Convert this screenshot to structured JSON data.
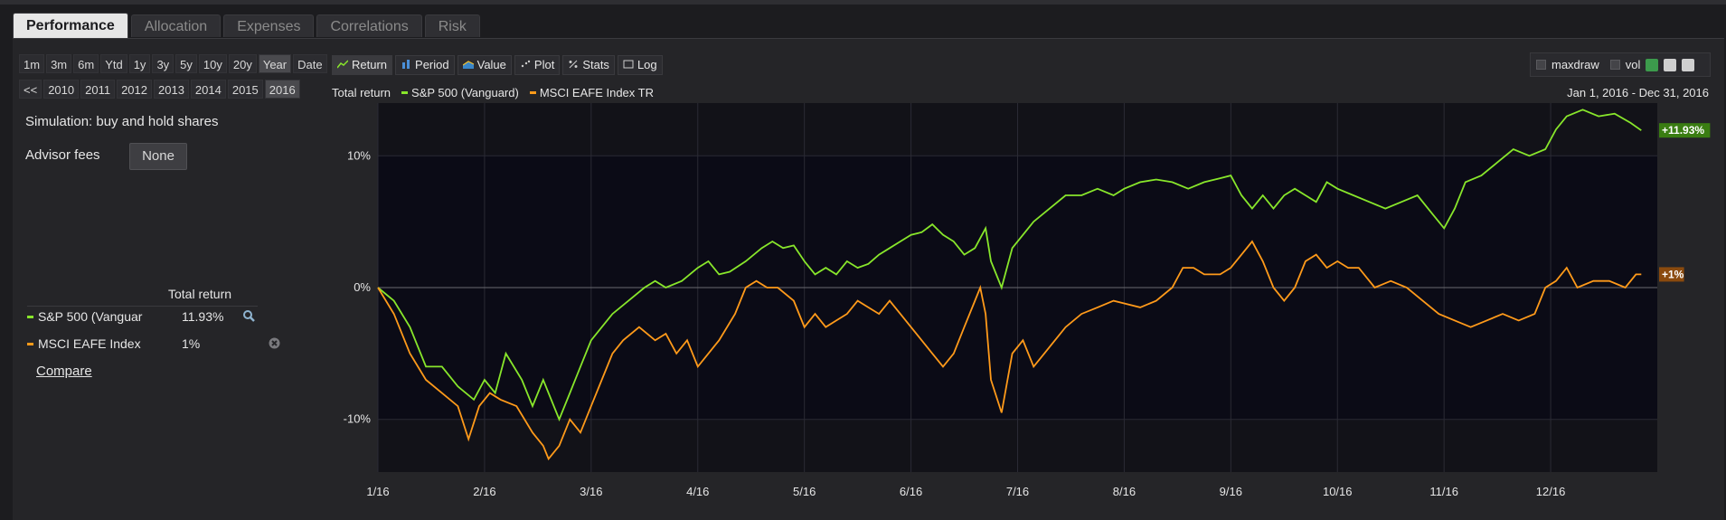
{
  "tabs": [
    {
      "label": "Performance",
      "active": true
    },
    {
      "label": "Allocation",
      "active": false
    },
    {
      "label": "Expenses",
      "active": false
    },
    {
      "label": "Correlations",
      "active": false
    },
    {
      "label": "Risk",
      "active": false
    }
  ],
  "periods": [
    "1m",
    "3m",
    "6m",
    "Ytd",
    "1y",
    "3y",
    "5y",
    "10y",
    "20y",
    "Year",
    "Date"
  ],
  "periods_selected": "Year",
  "years": [
    "<<",
    "2010",
    "2011",
    "2012",
    "2013",
    "2014",
    "2015",
    "2016"
  ],
  "year_selected": "2016",
  "simulation_label": "Simulation: buy and hold shares",
  "advisor_fees": {
    "label": "Advisor fees",
    "value": "None"
  },
  "holdings": {
    "header": "Total return",
    "rows": [
      {
        "name": "S&P 500 (Vanguar",
        "value": "11.93%",
        "color": "#88e62b",
        "icon": "magnifier-icon"
      },
      {
        "name": "MSCI EAFE Index",
        "value": "1%",
        "color": "#ff9a1a",
        "icon": "remove-icon"
      }
    ]
  },
  "compare_link": "Compare",
  "chart_controls": [
    {
      "label": "Return",
      "selected": true,
      "icon": "line-icon"
    },
    {
      "label": "Period",
      "selected": false,
      "icon": "bar-icon"
    },
    {
      "label": "Value",
      "selected": false,
      "icon": "area-icon"
    },
    {
      "label": "Plot",
      "selected": false,
      "icon": "scatter-icon"
    },
    {
      "label": "Stats",
      "selected": false,
      "icon": "percent-icon"
    },
    {
      "label": "Log",
      "selected": false,
      "icon": "checkbox-icon"
    }
  ],
  "toolbox": {
    "maxdraw": "maxdraw",
    "vol": "vol"
  },
  "chart_data": {
    "type": "line",
    "title": "Total return",
    "date_range": "Jan 1, 2016 - Dec 31, 2016",
    "x_ticks": [
      "1/16",
      "2/16",
      "3/16",
      "4/16",
      "5/16",
      "6/16",
      "7/16",
      "8/16",
      "9/16",
      "10/16",
      "11/16",
      "12/16"
    ],
    "y_ticks": [
      "10%",
      "0%",
      "-10%"
    ],
    "ylim": [
      -14,
      14
    ],
    "series": [
      {
        "name": "S&P 500 (Vanguard)",
        "color": "#88e62b",
        "end_label": "+11.93%",
        "points": [
          [
            0,
            0
          ],
          [
            0.15,
            -1
          ],
          [
            0.3,
            -3
          ],
          [
            0.45,
            -6
          ],
          [
            0.6,
            -6
          ],
          [
            0.75,
            -7.5
          ],
          [
            0.9,
            -8.5
          ],
          [
            1.0,
            -7
          ],
          [
            1.1,
            -8
          ],
          [
            1.2,
            -5
          ],
          [
            1.35,
            -7
          ],
          [
            1.45,
            -9
          ],
          [
            1.55,
            -7
          ],
          [
            1.7,
            -10
          ],
          [
            1.8,
            -8
          ],
          [
            1.9,
            -6
          ],
          [
            2.0,
            -4
          ],
          [
            2.1,
            -3
          ],
          [
            2.2,
            -2
          ],
          [
            2.35,
            -1
          ],
          [
            2.5,
            0
          ],
          [
            2.6,
            0.5
          ],
          [
            2.7,
            0
          ],
          [
            2.85,
            0.5
          ],
          [
            3.0,
            1.5
          ],
          [
            3.1,
            2
          ],
          [
            3.2,
            1
          ],
          [
            3.3,
            1.2
          ],
          [
            3.45,
            2
          ],
          [
            3.6,
            3
          ],
          [
            3.7,
            3.5
          ],
          [
            3.8,
            3
          ],
          [
            3.9,
            3.2
          ],
          [
            4.0,
            2
          ],
          [
            4.1,
            1
          ],
          [
            4.2,
            1.5
          ],
          [
            4.3,
            1
          ],
          [
            4.4,
            2
          ],
          [
            4.5,
            1.5
          ],
          [
            4.6,
            1.8
          ],
          [
            4.7,
            2.5
          ],
          [
            4.8,
            3
          ],
          [
            4.9,
            3.5
          ],
          [
            5.0,
            4
          ],
          [
            5.1,
            4.2
          ],
          [
            5.2,
            4.8
          ],
          [
            5.3,
            4
          ],
          [
            5.4,
            3.5
          ],
          [
            5.5,
            2.5
          ],
          [
            5.6,
            3
          ],
          [
            5.7,
            4.5
          ],
          [
            5.75,
            2
          ],
          [
            5.85,
            0
          ],
          [
            5.95,
            3
          ],
          [
            6.05,
            4
          ],
          [
            6.15,
            5
          ],
          [
            6.3,
            6
          ],
          [
            6.45,
            7
          ],
          [
            6.6,
            7
          ],
          [
            6.75,
            7.5
          ],
          [
            6.9,
            7
          ],
          [
            7.0,
            7.5
          ],
          [
            7.15,
            8
          ],
          [
            7.3,
            8.2
          ],
          [
            7.45,
            8
          ],
          [
            7.6,
            7.5
          ],
          [
            7.75,
            8
          ],
          [
            7.9,
            8.3
          ],
          [
            8.0,
            8.5
          ],
          [
            8.1,
            7
          ],
          [
            8.2,
            6
          ],
          [
            8.3,
            7
          ],
          [
            8.4,
            6
          ],
          [
            8.5,
            7
          ],
          [
            8.6,
            7.5
          ],
          [
            8.7,
            7
          ],
          [
            8.8,
            6.5
          ],
          [
            8.9,
            8
          ],
          [
            9.0,
            7.5
          ],
          [
            9.15,
            7
          ],
          [
            9.3,
            6.5
          ],
          [
            9.45,
            6
          ],
          [
            9.6,
            6.5
          ],
          [
            9.75,
            7
          ],
          [
            9.9,
            5.5
          ],
          [
            10.0,
            4.5
          ],
          [
            10.1,
            6
          ],
          [
            10.2,
            8
          ],
          [
            10.35,
            8.5
          ],
          [
            10.5,
            9.5
          ],
          [
            10.65,
            10.5
          ],
          [
            10.8,
            10
          ],
          [
            10.95,
            10.5
          ],
          [
            11.05,
            12
          ],
          [
            11.15,
            13
          ],
          [
            11.3,
            13.5
          ],
          [
            11.45,
            13
          ],
          [
            11.6,
            13.2
          ],
          [
            11.75,
            12.5
          ],
          [
            11.85,
            11.93
          ]
        ]
      },
      {
        "name": "MSCI EAFE Index TR",
        "color": "#ff9a1a",
        "end_label": "+1%",
        "points": [
          [
            0,
            0
          ],
          [
            0.15,
            -2
          ],
          [
            0.3,
            -5
          ],
          [
            0.45,
            -7
          ],
          [
            0.6,
            -8
          ],
          [
            0.75,
            -9
          ],
          [
            0.85,
            -11.5
          ],
          [
            0.95,
            -9
          ],
          [
            1.05,
            -8
          ],
          [
            1.15,
            -8.5
          ],
          [
            1.3,
            -9
          ],
          [
            1.45,
            -11
          ],
          [
            1.55,
            -12
          ],
          [
            1.6,
            -13
          ],
          [
            1.7,
            -12
          ],
          [
            1.8,
            -10
          ],
          [
            1.9,
            -11
          ],
          [
            2.0,
            -9
          ],
          [
            2.1,
            -7
          ],
          [
            2.2,
            -5
          ],
          [
            2.3,
            -4
          ],
          [
            2.45,
            -3
          ],
          [
            2.6,
            -4
          ],
          [
            2.7,
            -3.5
          ],
          [
            2.8,
            -5
          ],
          [
            2.9,
            -4
          ],
          [
            3.0,
            -6
          ],
          [
            3.1,
            -5
          ],
          [
            3.2,
            -4
          ],
          [
            3.35,
            -2
          ],
          [
            3.45,
            0
          ],
          [
            3.55,
            0.5
          ],
          [
            3.65,
            0
          ],
          [
            3.75,
            0
          ],
          [
            3.9,
            -1
          ],
          [
            4.0,
            -3
          ],
          [
            4.1,
            -2
          ],
          [
            4.2,
            -3
          ],
          [
            4.3,
            -2.5
          ],
          [
            4.4,
            -2
          ],
          [
            4.5,
            -1
          ],
          [
            4.6,
            -1.5
          ],
          [
            4.7,
            -2
          ],
          [
            4.8,
            -1
          ],
          [
            4.9,
            -2
          ],
          [
            5.0,
            -3
          ],
          [
            5.1,
            -4
          ],
          [
            5.2,
            -5
          ],
          [
            5.3,
            -6
          ],
          [
            5.4,
            -5
          ],
          [
            5.5,
            -3
          ],
          [
            5.6,
            -1
          ],
          [
            5.65,
            0
          ],
          [
            5.7,
            -2
          ],
          [
            5.75,
            -7
          ],
          [
            5.85,
            -9.5
          ],
          [
            5.95,
            -5
          ],
          [
            6.05,
            -4
          ],
          [
            6.15,
            -6
          ],
          [
            6.25,
            -5
          ],
          [
            6.35,
            -4
          ],
          [
            6.45,
            -3
          ],
          [
            6.6,
            -2
          ],
          [
            6.75,
            -1.5
          ],
          [
            6.9,
            -1
          ],
          [
            7.0,
            -1.2
          ],
          [
            7.15,
            -1.5
          ],
          [
            7.3,
            -1
          ],
          [
            7.45,
            0
          ],
          [
            7.55,
            1.5
          ],
          [
            7.65,
            1.5
          ],
          [
            7.75,
            1
          ],
          [
            7.9,
            1
          ],
          [
            8.0,
            1.5
          ],
          [
            8.1,
            2.5
          ],
          [
            8.2,
            3.5
          ],
          [
            8.3,
            2
          ],
          [
            8.4,
            0
          ],
          [
            8.5,
            -1
          ],
          [
            8.6,
            0
          ],
          [
            8.7,
            2
          ],
          [
            8.8,
            2.5
          ],
          [
            8.9,
            1.5
          ],
          [
            9.0,
            2
          ],
          [
            9.1,
            1.5
          ],
          [
            9.2,
            1.5
          ],
          [
            9.35,
            0
          ],
          [
            9.5,
            0.5
          ],
          [
            9.65,
            0
          ],
          [
            9.8,
            -1
          ],
          [
            9.95,
            -2
          ],
          [
            10.1,
            -2.5
          ],
          [
            10.25,
            -3
          ],
          [
            10.4,
            -2.5
          ],
          [
            10.55,
            -2
          ],
          [
            10.7,
            -2.5
          ],
          [
            10.85,
            -2
          ],
          [
            10.95,
            0
          ],
          [
            11.05,
            0.5
          ],
          [
            11.15,
            1.5
          ],
          [
            11.25,
            0
          ],
          [
            11.4,
            0.5
          ],
          [
            11.55,
            0.5
          ],
          [
            11.7,
            0
          ],
          [
            11.8,
            1
          ],
          [
            11.85,
            1
          ]
        ]
      }
    ]
  }
}
